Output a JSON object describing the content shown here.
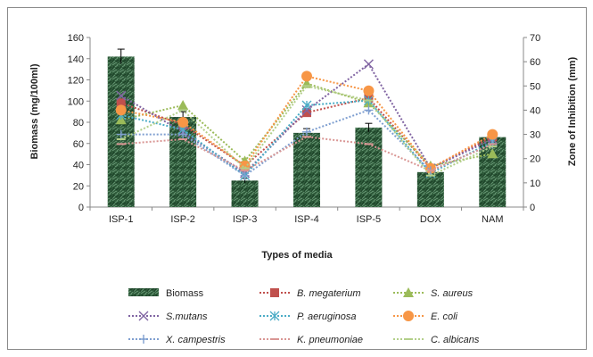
{
  "chart_data": {
    "type": "bar",
    "categories": [
      "ISP-1",
      "ISP-2",
      "ISP-3",
      "ISP-4",
      "ISP-5",
      "DOX",
      "NAM"
    ],
    "xlabel": "Types of media",
    "ylabel": "Biomass (mg/100ml)",
    "y2label": "Zone of Inhibition (mm)",
    "ylim": [
      0,
      160
    ],
    "y2lim": [
      0,
      70
    ],
    "yticks": [
      "0",
      "20",
      "40",
      "60",
      "80",
      "100",
      "120",
      "140",
      "160"
    ],
    "y2ticks": [
      "0",
      "10",
      "20",
      "30",
      "40",
      "50",
      "60",
      "70"
    ],
    "grid": false,
    "legend_position": "bottom",
    "bar_series": {
      "name": "Biomass",
      "values": [
        142,
        85,
        25,
        70,
        75,
        33,
        66
      ],
      "errors": [
        7,
        5,
        2,
        4,
        4,
        2,
        3
      ],
      "color": "#2e5a3a"
    },
    "series": [
      {
        "name": "B. megaterium",
        "italic": true,
        "axis": "right",
        "marker": "square",
        "color": "#c0504d",
        "values": [
          43,
          34,
          17,
          39,
          45,
          16,
          29
        ]
      },
      {
        "name": "S. aureus",
        "italic": true,
        "axis": "right",
        "marker": "triangle",
        "color": "#9bbb59",
        "values": [
          36,
          42,
          19,
          51,
          43,
          17,
          22
        ]
      },
      {
        "name": "S.mutans",
        "italic": true,
        "axis": "right",
        "marker": "x",
        "color": "#8064a2",
        "values": [
          46,
          31,
          14,
          40,
          59,
          16,
          28
        ]
      },
      {
        "name": "P. aeruginosa",
        "italic": true,
        "axis": "right",
        "marker": "asterisk",
        "color": "#4bacc6",
        "values": [
          38,
          32,
          13,
          42,
          44,
          14,
          27
        ]
      },
      {
        "name": "E. coli",
        "italic": true,
        "axis": "right",
        "marker": "circle",
        "color": "#f79646",
        "values": [
          40,
          35,
          17,
          54,
          48,
          16,
          30
        ]
      },
      {
        "name": "X. campestris",
        "italic": true,
        "axis": "right",
        "marker": "plus",
        "color": "#7f9fd0",
        "values": [
          30,
          30,
          13,
          31,
          40,
          15,
          26
        ]
      },
      {
        "name": "K. pneumoniae",
        "italic": true,
        "axis": "right",
        "marker": "dash",
        "color": "#d99694",
        "values": [
          26,
          28,
          15,
          29,
          26,
          15,
          26
        ]
      },
      {
        "name": "C. albicans",
        "italic": true,
        "axis": "right",
        "marker": "dash",
        "color": "#b3cf8a",
        "values": [
          28,
          40,
          16,
          50,
          44,
          13,
          25
        ]
      }
    ]
  }
}
